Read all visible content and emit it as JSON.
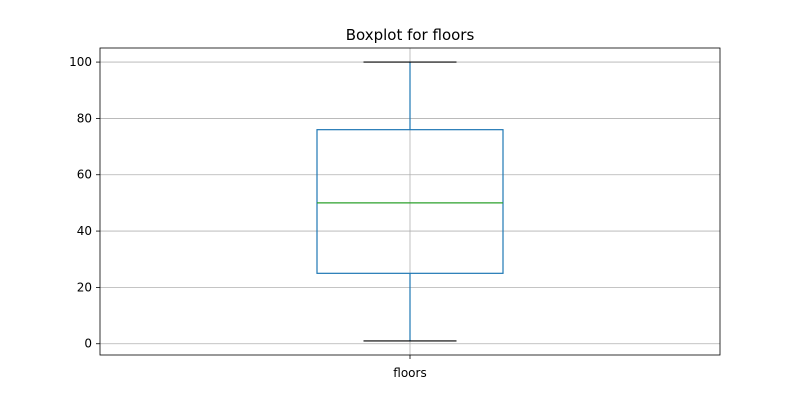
{
  "chart_data": {
    "type": "boxplot",
    "title": "Boxplot for floors",
    "categories": [
      "floors"
    ],
    "boxes": [
      {
        "category": "floors",
        "whislo": 1,
        "q1": 25,
        "median": 50,
        "q3": 76,
        "whishi": 100
      }
    ],
    "xlabel": "",
    "ylabel": "",
    "ylim": [
      -4,
      105
    ],
    "yticks": [
      0,
      20,
      40,
      60,
      80,
      100
    ],
    "grid": true,
    "colors": {
      "box": "#1f77b4",
      "median": "#2ca02c",
      "whisker_cap": "#000000",
      "grid": "#b0b0b0"
    }
  }
}
